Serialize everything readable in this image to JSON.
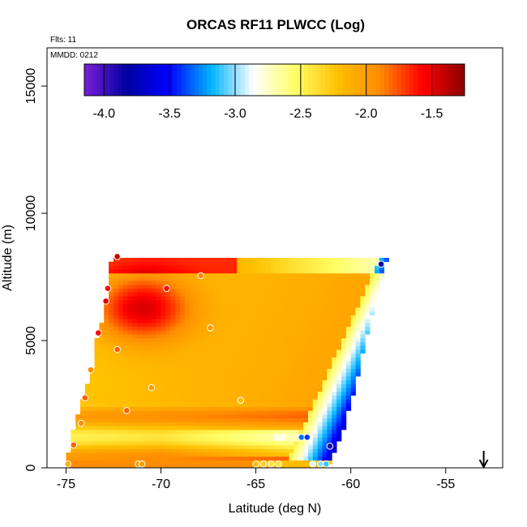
{
  "chart_data": {
    "type": "heatmap",
    "title": "ORCAS RF11 PLWCC (Log)",
    "xlabel": "Latitude (deg N)",
    "ylabel": "Altitude (m)",
    "xlim": [
      -76,
      -52
    ],
    "ylim": [
      0,
      16500
    ],
    "x_ticks": [
      -75,
      -70,
      -65,
      -60,
      -55
    ],
    "x_tick_labels": [
      "-75",
      "-70",
      "-65",
      "-60",
      "-55"
    ],
    "y_ticks": [
      0,
      5000,
      10000,
      15000
    ],
    "y_tick_labels": [
      "0",
      "5000",
      "10000",
      "15000"
    ],
    "annotations": {
      "flights": "Flts: 11",
      "date": "MMDD: 0212"
    },
    "colorbar": {
      "range": [
        -4.15,
        -1.25
      ],
      "ticks": [
        -4.0,
        -3.5,
        -3.0,
        -2.5,
        -2.0,
        -1.5
      ],
      "tick_labels": [
        "-4.0",
        "-3.5",
        "-3.0",
        "-2.5",
        "-2.0",
        "-1.5"
      ],
      "colors": [
        "#7a1fd6",
        "#0000a0",
        "#0000ff",
        "#00b4ff",
        "#ffffff",
        "#ffff66",
        "#ffc000",
        "#ff8c00",
        "#ff0000",
        "#8b0000"
      ]
    },
    "data_region": {
      "top_altitude": 8200,
      "left_edge": [
        [
          0,
          -75.0
        ],
        [
          1000,
          -74.8
        ],
        [
          2000,
          -74.4
        ],
        [
          3000,
          -74.0
        ],
        [
          4000,
          -73.6
        ],
        [
          5000,
          -73.4
        ],
        [
          6000,
          -73.0
        ],
        [
          7000,
          -72.8
        ],
        [
          8200,
          -72.6
        ]
      ],
      "right_edge": [
        [
          0,
          -61.2
        ],
        [
          1500,
          -60.4
        ],
        [
          3000,
          -59.8
        ],
        [
          4500,
          -59.4
        ],
        [
          6000,
          -58.9
        ],
        [
          7500,
          -58.3
        ],
        [
          8200,
          -58.1
        ]
      ],
      "grid": {
        "lat_start": -75.0,
        "lat_step": 0.25,
        "lat_count": 68,
        "alt_step": 150,
        "alt_count": 55
      }
    },
    "markers": [
      {
        "lat": -72.3,
        "alt": 8300,
        "value": -1.4
      },
      {
        "lat": -58.4,
        "alt": 8000,
        "value": -3.8
      },
      {
        "lat": -67.9,
        "alt": 7550,
        "value": -1.9
      },
      {
        "lat": -69.7,
        "alt": 7050,
        "value": -1.6
      },
      {
        "lat": -72.8,
        "alt": 7050,
        "value": -1.6
      },
      {
        "lat": -72.9,
        "alt": 6550,
        "value": -1.5
      },
      {
        "lat": -67.4,
        "alt": 5500,
        "value": -2.0
      },
      {
        "lat": -73.3,
        "alt": 5300,
        "value": -1.6
      },
      {
        "lat": -72.3,
        "alt": 4650,
        "value": -1.8
      },
      {
        "lat": -73.7,
        "alt": 3850,
        "value": -1.9
      },
      {
        "lat": -70.5,
        "alt": 3150,
        "value": -2.0
      },
      {
        "lat": -74.0,
        "alt": 2750,
        "value": -1.8
      },
      {
        "lat": -65.8,
        "alt": 2650,
        "value": -2.2
      },
      {
        "lat": -71.8,
        "alt": 2250,
        "value": -1.8
      },
      {
        "lat": -74.2,
        "alt": 1750,
        "value": -1.9
      },
      {
        "lat": -63.9,
        "alt": 1200,
        "value": -2.8
      },
      {
        "lat": -63.6,
        "alt": 1200,
        "value": -2.8
      },
      {
        "lat": -62.6,
        "alt": 1200,
        "value": -3.3
      },
      {
        "lat": -62.3,
        "alt": 1200,
        "value": -3.4
      },
      {
        "lat": -74.6,
        "alt": 900,
        "value": -1.8
      },
      {
        "lat": -61.1,
        "alt": 850,
        "value": -3.9
      },
      {
        "lat": -74.9,
        "alt": 150,
        "value": -2.1
      },
      {
        "lat": -71.2,
        "alt": 150,
        "value": -2.0
      },
      {
        "lat": -71.0,
        "alt": 150,
        "value": -2.0
      },
      {
        "lat": -65.0,
        "alt": 150,
        "value": -2.2
      },
      {
        "lat": -64.6,
        "alt": 150,
        "value": -2.3
      },
      {
        "lat": -64.2,
        "alt": 150,
        "value": -2.4
      },
      {
        "lat": -63.8,
        "alt": 150,
        "value": -2.4
      },
      {
        "lat": -62.0,
        "alt": 150,
        "value": -2.9
      },
      {
        "lat": -61.6,
        "alt": 150,
        "value": -3.0
      },
      {
        "lat": -61.3,
        "alt": 150,
        "value": -3.1
      }
    ],
    "arrow": {
      "lat": -53.0,
      "direction": "down"
    }
  }
}
